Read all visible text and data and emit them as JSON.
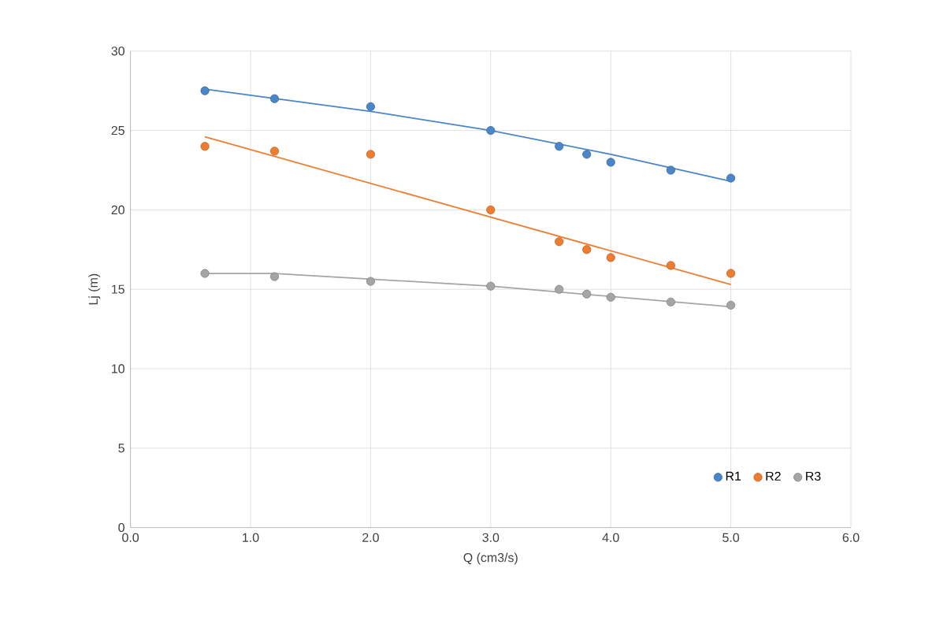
{
  "chart_data": {
    "type": "scatter",
    "xlabel": "Q (cm3/s)",
    "ylabel": "Lj (m)",
    "xlim": [
      0,
      6
    ],
    "ylim": [
      0,
      30
    ],
    "xticks": [
      {
        "value": 0,
        "label": "0.0"
      },
      {
        "value": 1,
        "label": "1.0"
      },
      {
        "value": 2,
        "label": "2.0"
      },
      {
        "value": 3,
        "label": "3.0"
      },
      {
        "value": 4,
        "label": "4.0"
      },
      {
        "value": 5,
        "label": "5.0"
      },
      {
        "value": 6,
        "label": "6.0"
      }
    ],
    "yticks": [
      0,
      5,
      10,
      15,
      20,
      25,
      30
    ],
    "grid": true,
    "legend": "bottom right",
    "marker": "circle",
    "x": [
      0.62,
      1.2,
      2.0,
      3.0,
      3.57,
      3.8,
      4.0,
      4.5,
      5.0
    ],
    "series": [
      {
        "name": "R1",
        "color": "#4a86c8",
        "values": [
          27.5,
          27.0,
          26.5,
          25.0,
          24.0,
          23.5,
          23.0,
          22.5,
          22.0
        ]
      },
      {
        "name": "R2",
        "color": "#ed7d31",
        "values": [
          24.0,
          23.7,
          23.5,
          20.0,
          18.0,
          17.5,
          17.0,
          16.5,
          16.0
        ]
      },
      {
        "name": "R3",
        "color": "#a5a5a5",
        "values": [
          16.0,
          15.8,
          15.5,
          15.2,
          15.0,
          14.7,
          14.5,
          14.2,
          14.0
        ]
      },
      {
        "type": "line",
        "color": "#4a86c8",
        "marker": "none",
        "x": [
          0.62,
          2,
          3,
          4,
          5
        ],
        "values": [
          27.6,
          26.2,
          25.0,
          23.5,
          21.8
        ]
      },
      {
        "type": "line",
        "color": "#ed7d31",
        "marker": "none",
        "x": [
          0.62,
          5
        ],
        "values": [
          24.6,
          15.3
        ]
      },
      {
        "type": "line",
        "color": "#a5a5a5",
        "marker": "none",
        "x": [
          0.62,
          1.2,
          3,
          5
        ],
        "values": [
          16.0,
          16.0,
          15.2,
          13.9
        ]
      }
    ]
  }
}
